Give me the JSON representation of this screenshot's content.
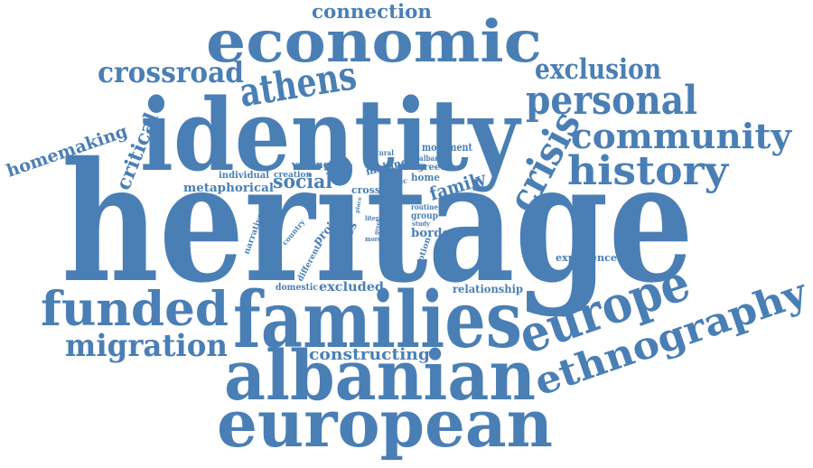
{
  "color": "#4a7fb5",
  "words": [
    {
      "id": "heritage",
      "text": "heritage"
    },
    {
      "id": "identity",
      "text": "identity"
    },
    {
      "id": "families",
      "text": "families"
    },
    {
      "id": "albanian",
      "text": "albanian"
    },
    {
      "id": "european",
      "text": "european"
    },
    {
      "id": "economic",
      "text": "economic"
    },
    {
      "id": "europe",
      "text": "europe"
    },
    {
      "id": "ethnography",
      "text": "ethnography"
    },
    {
      "id": "funded",
      "text": "funded"
    },
    {
      "id": "history",
      "text": "history"
    },
    {
      "id": "community",
      "text": "community"
    },
    {
      "id": "personal",
      "text": "personal"
    },
    {
      "id": "crisis",
      "text": "crisis"
    },
    {
      "id": "migration",
      "text": "migration"
    },
    {
      "id": "athens",
      "text": "athens"
    },
    {
      "id": "crossroad",
      "text": "crossroad"
    },
    {
      "id": "exclusion",
      "text": "exclusion"
    },
    {
      "id": "connection",
      "text": "connection"
    },
    {
      "id": "homemaking",
      "text": "homemaking"
    },
    {
      "id": "critical",
      "text": "critical"
    },
    {
      "id": "constructing",
      "text": "constructing"
    },
    {
      "id": "social",
      "text": "social"
    },
    {
      "id": "family",
      "text": "family"
    },
    {
      "id": "metaphorical",
      "text": "metaphorical"
    },
    {
      "id": "excluded",
      "text": "excluded"
    },
    {
      "id": "relationship",
      "text": "relationship"
    },
    {
      "id": "experience",
      "text": "experience"
    },
    {
      "id": "domestic",
      "text": "domestic"
    },
    {
      "id": "stories",
      "text": "stories"
    },
    {
      "id": "project",
      "text": "project"
    },
    {
      "id": "voicing",
      "text": "voicing"
    },
    {
      "id": "making",
      "text": "making"
    },
    {
      "id": "individual",
      "text": "individual"
    },
    {
      "id": "creation",
      "text": "creation"
    },
    {
      "id": "movement",
      "text": "movement"
    },
    {
      "id": "cultural",
      "text": "cultural"
    },
    {
      "id": "albania",
      "text": "albania"
    },
    {
      "id": "greece",
      "text": "greece"
    },
    {
      "id": "home",
      "text": "home"
    },
    {
      "id": "ethnic",
      "text": "ethnic"
    },
    {
      "id": "cross",
      "text": "cross"
    },
    {
      "id": "routine",
      "text": "routine"
    },
    {
      "id": "group",
      "text": "group"
    },
    {
      "id": "border",
      "text": "border"
    },
    {
      "id": "notion",
      "text": "notion"
    },
    {
      "id": "study",
      "text": "study"
    },
    {
      "id": "literal",
      "text": "literal"
    },
    {
      "id": "place",
      "text": "place"
    },
    {
      "id": "greek",
      "text": "greek"
    },
    {
      "id": "more",
      "text": "more"
    },
    {
      "id": "narrative",
      "text": "narrative"
    },
    {
      "id": "country",
      "text": "country"
    },
    {
      "id": "different",
      "text": "different"
    }
  ]
}
